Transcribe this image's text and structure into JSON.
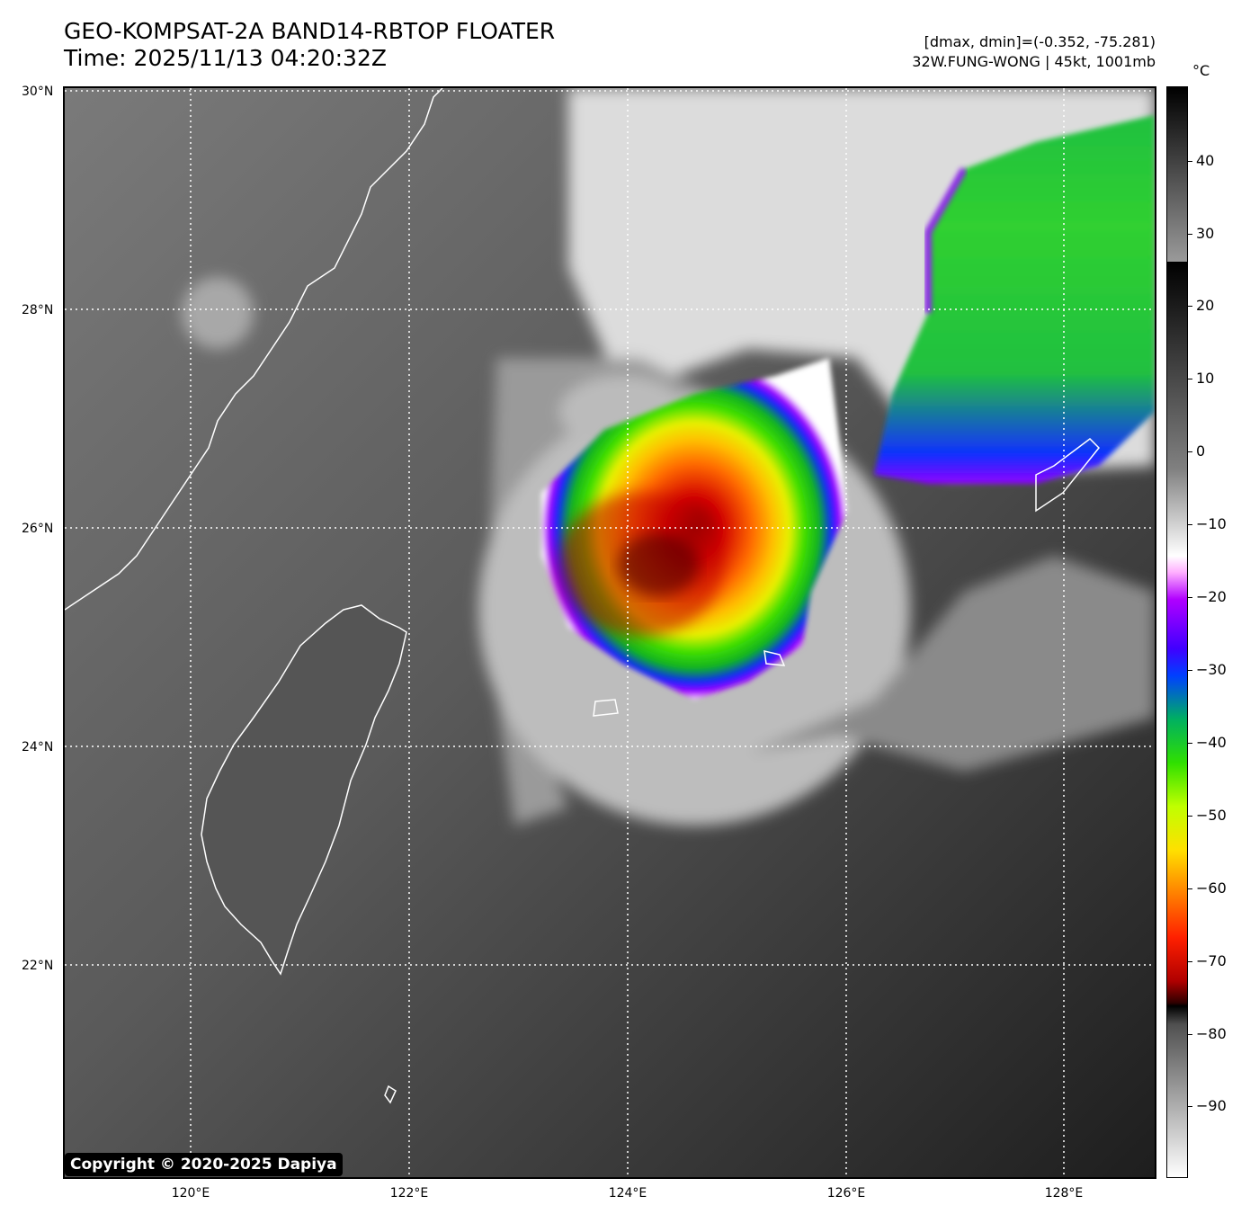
{
  "header": {
    "title_line1": "GEO-KOMPSAT-2A BAND14-RBTOP FLOATER",
    "title_line2": "Time: 2025/11/13 04:20:32Z",
    "info_line1": "[dmax, dmin]=(-0.352, -75.281)",
    "info_line2": "32W.FUNG-WONG | 45kt, 1001mb"
  },
  "map": {
    "lat_labels": [
      "30°N",
      "28°N",
      "26°N",
      "24°N",
      "22°N"
    ],
    "lon_labels": [
      "120°E",
      "122°E",
      "124°E",
      "126°E",
      "128°E"
    ],
    "copyright": "Copyright © 2020-2025 Dapiya",
    "storm": "32W.FUNG-WONG",
    "coastline_color": "#ffffff",
    "gridline_style": "dotted white"
  },
  "colorbar": {
    "unit": "°C",
    "tick_labels": [
      "40",
      "30",
      "20",
      "10",
      "0",
      "−10",
      "−20",
      "−30",
      "−40",
      "−50",
      "−60",
      "−70",
      "−80",
      "−90"
    ],
    "colors": {
      "warm_gray_top": "#000000",
      "white": "#ffffff",
      "purple": "#b000ff",
      "blue": "#0000ff",
      "green": "#00d000",
      "yellow": "#f0f000",
      "orange": "#ff8000",
      "red": "#e00000",
      "dark_red": "#400000"
    }
  }
}
